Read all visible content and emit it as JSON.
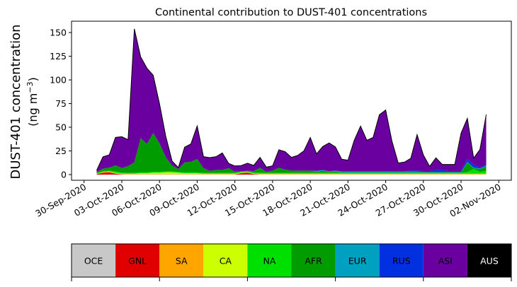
{
  "chart_data": {
    "type": "area",
    "stacked": true,
    "title": "Continental contribution to DUST-401 concentrations",
    "ylabel_line1": "DUST-401 concentration",
    "ylabel_line2_prefix": "(ng m",
    "ylabel_line2_sup": "−3",
    "ylabel_line2_suffix": ")",
    "ylim": [
      -6,
      162
    ],
    "yticks": [
      0,
      25,
      50,
      75,
      100,
      125,
      150
    ],
    "xlim": [
      "2020-09-29",
      "2020-11-03"
    ],
    "xtick_labels": [
      "30-Sep-2020",
      "03-Oct-2020",
      "06-Oct-2020",
      "09-Oct-2020",
      "12-Oct-2020",
      "15-Oct-2020",
      "18-Oct-2020",
      "21-Oct-2020",
      "24-Oct-2020",
      "27-Oct-2020",
      "30-Oct-2020",
      "02-Nov-2020"
    ],
    "x": [
      "2020-10-01",
      "2020-10-01T12:00",
      "2020-10-02",
      "2020-10-02T12:00",
      "2020-10-03",
      "2020-10-03T12:00",
      "2020-10-04",
      "2020-10-04T12:00",
      "2020-10-05",
      "2020-10-05T12:00",
      "2020-10-06",
      "2020-10-06T12:00",
      "2020-10-07",
      "2020-10-07T12:00",
      "2020-10-08",
      "2020-10-08T12:00",
      "2020-10-09",
      "2020-10-09T12:00",
      "2020-10-10",
      "2020-10-10T12:00",
      "2020-10-11",
      "2020-10-11T12:00",
      "2020-10-12",
      "2020-10-12T12:00",
      "2020-10-13",
      "2020-10-13T12:00",
      "2020-10-14",
      "2020-10-14T12:00",
      "2020-10-15",
      "2020-10-15T12:00",
      "2020-10-16",
      "2020-10-16T12:00",
      "2020-10-17",
      "2020-10-17T12:00",
      "2020-10-18",
      "2020-10-18T12:00",
      "2020-10-19",
      "2020-10-19T12:00",
      "2020-10-20",
      "2020-10-20T12:00",
      "2020-10-21",
      "2020-10-21T12:00",
      "2020-10-22",
      "2020-10-22T12:00",
      "2020-10-23",
      "2020-10-23T12:00",
      "2020-10-24",
      "2020-10-24T12:00",
      "2020-10-25",
      "2020-10-25T12:00",
      "2020-10-26",
      "2020-10-26T12:00",
      "2020-10-27",
      "2020-10-27T12:00",
      "2020-10-28",
      "2020-10-28T12:00",
      "2020-10-29",
      "2020-10-29T12:00",
      "2020-10-30",
      "2020-10-30T12:00",
      "2020-10-31",
      "2020-10-31T12:00",
      "2020-11-01"
    ],
    "series": [
      {
        "name": "OCE",
        "color": "#c8c8c8",
        "values": [
          0,
          0,
          0,
          0,
          0,
          0,
          0,
          0,
          0,
          0,
          0,
          0,
          0,
          0,
          0,
          0,
          0,
          0,
          0,
          0,
          0,
          0,
          0,
          0,
          0,
          0,
          0,
          0,
          0,
          0,
          0,
          0,
          0,
          0,
          0,
          0,
          0,
          0,
          0,
          0,
          0,
          0,
          0,
          0,
          0,
          0,
          0,
          0,
          0,
          0,
          0,
          0,
          0,
          0,
          0,
          0,
          0,
          0,
          0,
          0,
          0,
          0,
          0
        ]
      },
      {
        "name": "GNL",
        "color": "#e00000",
        "values": [
          0.5,
          2,
          2.5,
          1,
          0.3,
          0.2,
          0.2,
          0.2,
          0.2,
          0.2,
          0.2,
          0.2,
          0.2,
          0.2,
          0.2,
          0.2,
          0.2,
          0.2,
          0.2,
          0.2,
          0.2,
          0.2,
          0.2,
          1.5,
          2,
          0.5,
          0.2,
          0.2,
          0.2,
          0.2,
          0.2,
          0.2,
          0.2,
          0.2,
          0.2,
          0.2,
          0.2,
          0.2,
          0.2,
          0.2,
          0.2,
          0.2,
          0.2,
          0.2,
          0.2,
          0.2,
          0.2,
          0.2,
          0.2,
          0.2,
          0.2,
          0.2,
          0.2,
          0.2,
          0.2,
          0.2,
          0.2,
          0.2,
          0.2,
          0.2,
          0.2,
          0.2,
          0.2
        ]
      },
      {
        "name": "SA",
        "color": "#ffa500",
        "values": [
          0.2,
          0.3,
          0.3,
          0.3,
          0.2,
          0.2,
          0.2,
          0.2,
          0.2,
          0.2,
          0.2,
          0.2,
          0.2,
          0.2,
          0.2,
          0.2,
          0.2,
          0.2,
          0.2,
          0.2,
          0.2,
          0.2,
          0.2,
          0.2,
          0.2,
          0.2,
          0.2,
          0.2,
          0.2,
          0.2,
          0.2,
          0.2,
          0.2,
          0.2,
          0.2,
          0.2,
          0.2,
          0.2,
          0.2,
          0.2,
          0.2,
          0.2,
          0.2,
          0.2,
          0.2,
          0.2,
          0.2,
          0.2,
          0.2,
          0.2,
          0.2,
          0.2,
          0.2,
          0.2,
          0.2,
          0.2,
          0.2,
          0.2,
          0.2,
          0.2,
          0.2,
          0.2,
          0.2
        ]
      },
      {
        "name": "CA",
        "color": "#ccff00",
        "values": [
          0.3,
          0.5,
          0.5,
          0.5,
          0.5,
          0.5,
          0.5,
          1,
          1,
          1.5,
          1.5,
          2,
          2,
          1.5,
          1,
          1,
          1,
          0.5,
          0.5,
          0.5,
          0.5,
          0.5,
          0.5,
          0.5,
          0.5,
          0.5,
          0.5,
          0.5,
          0.5,
          0.5,
          0.5,
          0.5,
          0.5,
          0.5,
          0.5,
          0.5,
          0.5,
          0.5,
          0.5,
          0.5,
          0.5,
          0.5,
          0.5,
          0.5,
          0.5,
          0.5,
          0.5,
          0.5,
          0.5,
          0.5,
          0.5,
          0.5,
          0.5,
          0.5,
          0.5,
          0.5,
          0.5,
          0.5,
          0.5,
          0.5,
          0.5,
          0.5,
          0.5
        ]
      },
      {
        "name": "NA",
        "color": "#00e000",
        "values": [
          0.5,
          1,
          1,
          1.5,
          1,
          1,
          1,
          1,
          1,
          1,
          1,
          1,
          1,
          1,
          1,
          1,
          1,
          1,
          1,
          1,
          1,
          1,
          1,
          1,
          1,
          1,
          1,
          1,
          1,
          1,
          1,
          1,
          1,
          1,
          1,
          1,
          1,
          1,
          1,
          1,
          1,
          1,
          1,
          1,
          1,
          1,
          1,
          1,
          1,
          1,
          1,
          1,
          1,
          1,
          1,
          1,
          1,
          1,
          1,
          2,
          5,
          2,
          3
        ]
      },
      {
        "name": "AFR",
        "color": "#009c00",
        "values": [
          1,
          2.5,
          3,
          6.5,
          5,
          7,
          11,
          36,
          30,
          41,
          30,
          15,
          6,
          3,
          10.5,
          11,
          14,
          5,
          2,
          3,
          3,
          5,
          1.2,
          0.3,
          0.3,
          1.5,
          5.3,
          1,
          2.3,
          5.3,
          3.3,
          2.3,
          2.3,
          2.3,
          2.3,
          1,
          2.3,
          1,
          1.3,
          0.3,
          0.3,
          0.3,
          0.3,
          0.3,
          0.3,
          0.3,
          0.3,
          0.3,
          0.3,
          0.3,
          0.3,
          0.3,
          0.3,
          0.3,
          0.3,
          0.3,
          0.3,
          0.3,
          0.3,
          10,
          1,
          3,
          5
        ]
      },
      {
        "name": "EUR",
        "color": "#00a0c0",
        "values": [
          0,
          0,
          0,
          0,
          0,
          0,
          0,
          0,
          0,
          0,
          0,
          0,
          0,
          0,
          0,
          0,
          0,
          0,
          0,
          0,
          0,
          0,
          0,
          0,
          0,
          0,
          0,
          0,
          0,
          0,
          0,
          0,
          0,
          0,
          0,
          1,
          0.5,
          0.5,
          1,
          1,
          1,
          1,
          1,
          1,
          1,
          1,
          1,
          1,
          1,
          1,
          1,
          1,
          0.5,
          0.5,
          0.5,
          0.5,
          0.5,
          0.5,
          0.5,
          0.5,
          0.5,
          0.5,
          0.5
        ]
      },
      {
        "name": "RUS",
        "color": "#0030e0",
        "values": [
          0,
          0,
          0,
          0,
          0,
          0,
          0,
          0,
          0,
          0,
          0,
          0,
          0,
          0,
          0,
          0,
          0,
          0,
          0,
          0,
          0,
          0,
          0,
          0,
          0,
          0,
          0,
          0,
          0,
          0,
          0,
          0,
          0,
          0,
          0,
          0,
          0,
          0,
          0,
          0,
          0,
          0,
          0,
          0,
          0,
          0,
          0,
          0,
          0,
          0,
          1,
          1,
          1,
          1,
          2,
          2,
          1,
          1,
          1,
          3,
          3,
          1,
          1
        ]
      },
      {
        "name": "ASI",
        "color": "#6a00a0",
        "values": [
          2,
          12.5,
          13.5,
          29.5,
          33,
          28,
          141,
          86,
          80,
          61,
          42,
          22,
          5,
          1.5,
          16,
          19,
          35,
          12,
          14,
          14,
          18,
          5,
          6,
          6,
          8,
          6,
          11,
          5,
          5,
          19,
          19,
          14,
          16,
          21,
          35,
          18,
          25,
          30,
          25,
          13,
          12,
          33,
          48,
          33,
          36,
          60,
          65,
          32,
          9,
          10,
          13,
          38,
          17,
          5,
          13,
          6,
          7,
          7,
          40,
          43,
          7,
          19,
          53
        ]
      },
      {
        "name": "AUS",
        "color": "#000000",
        "values": [
          0,
          0,
          0,
          0,
          0,
          0,
          0,
          0,
          0,
          0,
          0,
          0,
          0,
          0,
          0,
          0,
          0,
          0,
          0,
          0,
          0,
          0,
          0,
          0,
          0,
          0,
          0,
          0,
          0,
          0,
          0,
          0,
          0,
          0,
          0,
          0,
          0,
          0,
          0,
          0,
          0,
          0,
          0,
          0,
          0,
          0,
          0,
          0,
          0,
          0,
          0,
          0,
          0,
          0,
          0,
          0,
          0,
          0,
          0,
          0,
          0,
          0,
          0
        ]
      }
    ]
  }
}
